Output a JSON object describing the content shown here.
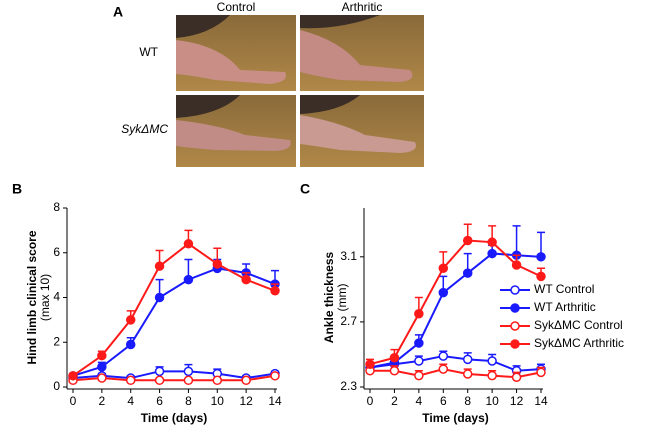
{
  "panel_a": {
    "label": "A",
    "columns": [
      "Control",
      "Arthritic"
    ],
    "rows": [
      "WT",
      "SykΔMC"
    ]
  },
  "chart_data": [
    {
      "type": "line",
      "panel": "B",
      "ylabel": "Hind limb clinical score",
      "ylabel2": "(max 10)",
      "xlabel": "Time (days)",
      "x": [
        0,
        2,
        4,
        6,
        8,
        10,
        12,
        14
      ],
      "xlim": [
        0,
        14
      ],
      "xticks": [
        0,
        2,
        4,
        6,
        8,
        10,
        12,
        14
      ],
      "ylim": [
        0,
        8
      ],
      "yticks": [
        0,
        2,
        4,
        6,
        8
      ],
      "series": [
        {
          "color": "#1a1aff",
          "filled": false,
          "values": [
            0.4,
            0.5,
            0.4,
            0.7,
            0.7,
            0.6,
            0.4,
            0.6
          ],
          "errors": [
            0.1,
            0.1,
            0.1,
            0.2,
            0.3,
            0.2,
            0.1,
            0.1
          ]
        },
        {
          "color": "#1a1aff",
          "filled": true,
          "values": [
            0.5,
            0.9,
            1.9,
            4.0,
            4.8,
            5.3,
            5.1,
            4.6
          ],
          "errors": [
            0.1,
            0.2,
            0.3,
            0.8,
            0.9,
            0.4,
            0.4,
            0.6
          ]
        },
        {
          "color": "#ff1a1a",
          "filled": false,
          "values": [
            0.3,
            0.4,
            0.3,
            0.3,
            0.3,
            0.3,
            0.3,
            0.5
          ],
          "errors": [
            0.05,
            0.05,
            0.05,
            0.05,
            0.05,
            0.05,
            0.05,
            0.05
          ]
        },
        {
          "color": "#ff1a1a",
          "filled": true,
          "values": [
            0.5,
            1.4,
            3.0,
            5.4,
            6.4,
            5.5,
            4.8,
            4.3
          ],
          "errors": [
            0.1,
            0.2,
            0.4,
            0.7,
            0.6,
            0.7,
            0.3,
            0.3
          ]
        }
      ]
    },
    {
      "type": "line",
      "panel": "C",
      "ylabel": "Ankle thickness",
      "ylabel2": "(mm)",
      "xlabel": "Time (days)",
      "x": [
        0,
        2,
        4,
        6,
        8,
        10,
        12,
        14
      ],
      "xlim": [
        0,
        14
      ],
      "xticks": [
        0,
        2,
        4,
        6,
        8,
        10,
        12,
        14
      ],
      "ylim": [
        2.3,
        3.4
      ],
      "yticks": [
        2.3,
        2.7,
        3.1
      ],
      "series": [
        {
          "name": "WT Control",
          "color": "#1a1aff",
          "filled": false,
          "values": [
            2.42,
            2.44,
            2.46,
            2.49,
            2.47,
            2.46,
            2.4,
            2.41
          ],
          "errors": [
            0.03,
            0.03,
            0.03,
            0.03,
            0.04,
            0.04,
            0.03,
            0.03
          ]
        },
        {
          "name": "WT Arthritic",
          "color": "#1a1aff",
          "filled": true,
          "values": [
            2.42,
            2.45,
            2.57,
            2.88,
            3.0,
            3.12,
            3.11,
            3.1
          ],
          "errors": [
            0.02,
            0.03,
            0.05,
            0.1,
            0.12,
            0.05,
            0.18,
            0.15
          ]
        },
        {
          "name": "SykΔMC Control",
          "color": "#ff1a1a",
          "filled": false,
          "values": [
            2.4,
            2.4,
            2.37,
            2.41,
            2.38,
            2.37,
            2.36,
            2.39
          ],
          "errors": [
            0.03,
            0.03,
            0.03,
            0.03,
            0.03,
            0.03,
            0.03,
            0.03
          ]
        },
        {
          "name": "SykΔMC Arthritic",
          "color": "#ff1a1a",
          "filled": true,
          "values": [
            2.44,
            2.48,
            2.75,
            3.03,
            3.2,
            3.19,
            3.05,
            2.98
          ],
          "errors": [
            0.03,
            0.05,
            0.1,
            0.1,
            0.1,
            0.1,
            0.06,
            0.05
          ]
        }
      ]
    }
  ]
}
